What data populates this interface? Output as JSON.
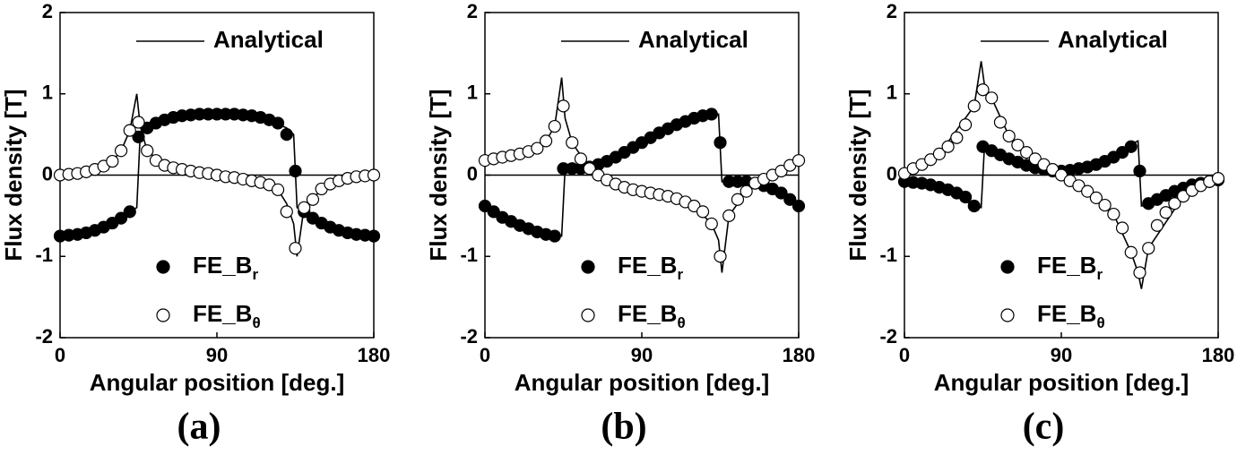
{
  "chart_data": [
    {
      "type": "line",
      "caption": "(a)",
      "x_label": "Angular position [deg.]",
      "y_label": "Flux density [T]",
      "xlim": [
        0,
        180
      ],
      "xticks": [
        0,
        90,
        180
      ],
      "ylim": [
        -2,
        2
      ],
      "yticks": [
        -2,
        -1,
        0,
        1,
        2
      ],
      "zero_line": true,
      "x": [
        0,
        5,
        10,
        15,
        20,
        25,
        30,
        35,
        40,
        45,
        50,
        55,
        60,
        65,
        70,
        75,
        80,
        85,
        90,
        95,
        100,
        105,
        110,
        115,
        120,
        125,
        130,
        135,
        140,
        145,
        150,
        155,
        160,
        165,
        170,
        175,
        180
      ],
      "series": [
        {
          "name": "Analytical",
          "type": "line",
          "color": "#000000",
          "x": [
            0,
            10,
            20,
            30,
            40,
            44,
            46,
            50,
            60,
            70,
            80,
            90,
            100,
            110,
            120,
            130,
            134,
            136,
            140,
            150,
            160,
            170,
            180,
            null,
            0,
            10,
            20,
            30,
            35,
            40,
            44,
            46,
            50,
            60,
            70,
            80,
            90,
            100,
            110,
            120,
            125,
            130,
            134,
            136,
            140,
            145,
            150,
            160,
            170,
            180
          ],
          "values": [
            -0.75,
            -0.73,
            -0.68,
            -0.59,
            -0.45,
            -0.4,
            0.5,
            0.58,
            0.68,
            0.73,
            0.75,
            0.75,
            0.75,
            0.73,
            0.68,
            0.58,
            0.5,
            -0.4,
            -0.45,
            -0.59,
            -0.68,
            -0.73,
            -0.75,
            null,
            0,
            0.02,
            0.07,
            0.17,
            0.3,
            0.55,
            1.0,
            0.6,
            0.3,
            0.12,
            0.07,
            0.03,
            0,
            -0.03,
            -0.07,
            -0.12,
            -0.18,
            -0.35,
            -0.6,
            -1.0,
            -0.4,
            -0.3,
            -0.17,
            -0.07,
            -0.02,
            0
          ]
        },
        {
          "name": "FE_B",
          "name_sub": "r",
          "type": "scatter",
          "color": "#000000",
          "marker_fill": "#000000",
          "values": [
            -0.75,
            -0.74,
            -0.73,
            -0.71,
            -0.68,
            -0.64,
            -0.59,
            -0.53,
            -0.45,
            0.47,
            0.58,
            0.64,
            0.68,
            0.71,
            0.73,
            0.74,
            0.75,
            0.75,
            0.75,
            0.75,
            0.75,
            0.74,
            0.73,
            0.71,
            0.68,
            0.64,
            0.5,
            0.05,
            -0.45,
            -0.53,
            -0.59,
            -0.64,
            -0.68,
            -0.71,
            -0.73,
            -0.74,
            -0.75
          ]
        },
        {
          "name": "FE_B",
          "name_sub": "θ",
          "type": "scatter",
          "color": "#000000",
          "marker_fill": "#ffffff",
          "values": [
            0,
            0.01,
            0.02,
            0.04,
            0.07,
            0.11,
            0.17,
            0.3,
            0.55,
            0.65,
            0.3,
            0.18,
            0.12,
            0.09,
            0.07,
            0.05,
            0.03,
            0.02,
            0,
            -0.02,
            -0.03,
            -0.05,
            -0.07,
            -0.09,
            -0.12,
            -0.18,
            -0.45,
            -0.9,
            -0.4,
            -0.3,
            -0.17,
            -0.11,
            -0.07,
            -0.04,
            -0.02,
            -0.01,
            0
          ]
        }
      ]
    },
    {
      "type": "line",
      "caption": "(b)",
      "x_label": "Angular position [deg.]",
      "y_label": "Flux density [T]",
      "xlim": [
        0,
        180
      ],
      "xticks": [
        0,
        90,
        180
      ],
      "ylim": [
        -2,
        2
      ],
      "yticks": [
        -2,
        -1,
        0,
        1,
        2
      ],
      "zero_line": true,
      "x": [
        0,
        5,
        10,
        15,
        20,
        25,
        30,
        35,
        40,
        45,
        50,
        55,
        60,
        65,
        70,
        75,
        80,
        85,
        90,
        95,
        100,
        105,
        110,
        115,
        120,
        125,
        130,
        135,
        140,
        145,
        150,
        155,
        160,
        165,
        170,
        175,
        180
      ],
      "series": [
        {
          "name": "Analytical",
          "type": "line",
          "color": "#000000",
          "x": [
            0,
            20,
            40,
            44,
            46,
            60,
            90,
            120,
            130,
            134,
            136,
            140,
            160,
            180,
            null,
            0,
            20,
            35,
            40,
            44,
            46,
            50,
            60,
            90,
            120,
            130,
            134,
            136,
            140,
            150,
            160,
            180
          ],
          "values": [
            -0.38,
            -0.62,
            -0.75,
            -0.75,
            0.08,
            0.1,
            0.4,
            0.7,
            0.75,
            0.75,
            -0.08,
            -0.08,
            -0.13,
            -0.38,
            null,
            0.18,
            0.26,
            0.42,
            0.6,
            1.2,
            0.7,
            0.4,
            0.08,
            -0.2,
            -0.38,
            -0.6,
            -0.8,
            -1.2,
            -0.5,
            -0.2,
            -0.05,
            0.18
          ]
        },
        {
          "name": "FE_B",
          "name_sub": "r",
          "type": "scatter",
          "color": "#000000",
          "marker_fill": "#000000",
          "values": [
            -0.38,
            -0.45,
            -0.52,
            -0.57,
            -0.62,
            -0.66,
            -0.7,
            -0.73,
            -0.75,
            0.08,
            0.08,
            0.08,
            0.1,
            0.13,
            0.17,
            0.22,
            0.28,
            0.34,
            0.4,
            0.46,
            0.52,
            0.57,
            0.62,
            0.66,
            0.7,
            0.73,
            0.75,
            0.4,
            -0.08,
            -0.08,
            -0.08,
            -0.1,
            -0.13,
            -0.17,
            -0.22,
            -0.3,
            -0.38
          ]
        },
        {
          "name": "FE_B",
          "name_sub": "θ",
          "type": "scatter",
          "color": "#000000",
          "marker_fill": "#ffffff",
          "values": [
            0.18,
            0.2,
            0.22,
            0.24,
            0.26,
            0.29,
            0.33,
            0.42,
            0.6,
            0.85,
            0.4,
            0.2,
            0.08,
            0,
            -0.06,
            -0.11,
            -0.15,
            -0.18,
            -0.2,
            -0.22,
            -0.24,
            -0.26,
            -0.29,
            -0.33,
            -0.38,
            -0.45,
            -0.6,
            -1.0,
            -0.5,
            -0.3,
            -0.2,
            -0.1,
            -0.05,
            0,
            0.05,
            0.12,
            0.18
          ]
        }
      ]
    },
    {
      "type": "line",
      "caption": "(c)",
      "x_label": "Angular position [deg.]",
      "y_label": "Flux density [T]",
      "xlim": [
        0,
        180
      ],
      "xticks": [
        0,
        90,
        180
      ],
      "ylim": [
        -2,
        2
      ],
      "yticks": [
        -2,
        -1,
        0,
        1,
        2
      ],
      "zero_line": true,
      "x": [
        0,
        5,
        10,
        15,
        20,
        25,
        30,
        35,
        40,
        45,
        50,
        55,
        60,
        65,
        70,
        75,
        80,
        85,
        90,
        95,
        100,
        105,
        110,
        115,
        120,
        125,
        130,
        135,
        140,
        145,
        150,
        155,
        160,
        165,
        170,
        175,
        180
      ],
      "series": [
        {
          "name": "Analytical",
          "type": "line",
          "color": "#000000",
          "x": [
            0,
            20,
            40,
            44,
            46,
            60,
            90,
            120,
            130,
            134,
            136,
            140,
            160,
            180,
            null,
            0,
            20,
            40,
            44,
            46,
            50,
            60,
            90,
            120,
            130,
            134,
            136,
            140,
            160,
            180
          ],
          "values": [
            -0.08,
            -0.15,
            -0.38,
            -0.4,
            0.38,
            0.2,
            0.05,
            0.22,
            0.38,
            0.42,
            -0.38,
            -0.35,
            -0.16,
            -0.06,
            null,
            0.02,
            0.26,
            0.85,
            1.4,
            1.1,
            0.95,
            0.48,
            0,
            -0.48,
            -0.95,
            -1.2,
            -1.4,
            -0.9,
            -0.26,
            -0.04
          ]
        },
        {
          "name": "FE_B",
          "name_sub": "r",
          "type": "scatter",
          "color": "#000000",
          "marker_fill": "#000000",
          "values": [
            -0.08,
            -0.09,
            -0.1,
            -0.12,
            -0.15,
            -0.18,
            -0.22,
            -0.27,
            -0.38,
            0.35,
            0.3,
            0.25,
            0.2,
            0.16,
            0.12,
            0.09,
            0.07,
            0.05,
            0.05,
            0.06,
            0.08,
            0.1,
            0.13,
            0.17,
            0.22,
            0.28,
            0.35,
            0.05,
            -0.35,
            -0.3,
            -0.25,
            -0.2,
            -0.16,
            -0.12,
            -0.1,
            -0.08,
            -0.06
          ]
        },
        {
          "name": "FE_B",
          "name_sub": "θ",
          "type": "scatter",
          "color": "#000000",
          "marker_fill": "#ffffff",
          "values": [
            0.02,
            0.08,
            0.13,
            0.19,
            0.26,
            0.35,
            0.46,
            0.62,
            0.85,
            1.05,
            0.95,
            0.65,
            0.48,
            0.37,
            0.28,
            0.2,
            0.13,
            0.07,
            0,
            -0.07,
            -0.13,
            -0.2,
            -0.28,
            -0.37,
            -0.48,
            -0.65,
            -0.95,
            -1.2,
            -0.9,
            -0.62,
            -0.46,
            -0.35,
            -0.26,
            -0.19,
            -0.13,
            -0.08,
            -0.04
          ]
        }
      ]
    }
  ]
}
